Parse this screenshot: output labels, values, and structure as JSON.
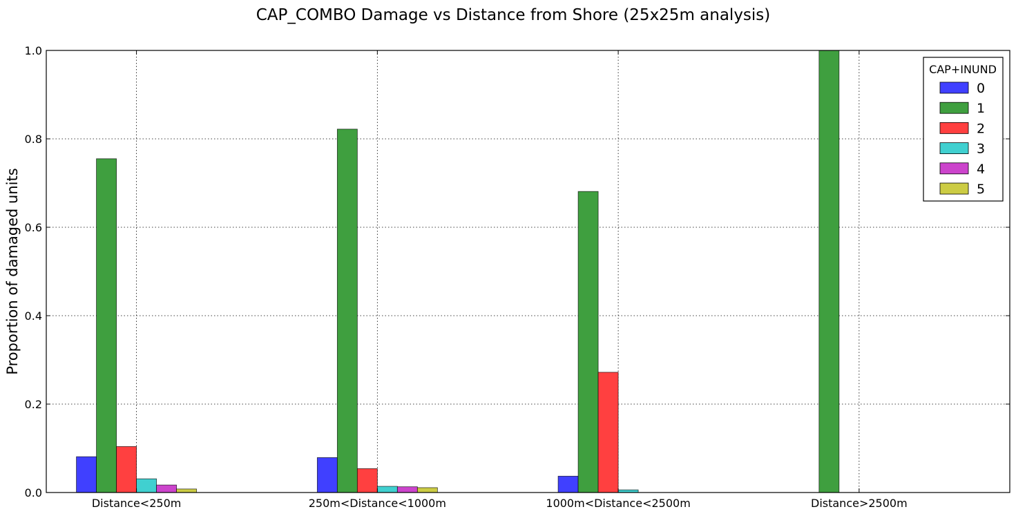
{
  "chart_data": {
    "type": "bar",
    "title": "CAP_COMBO Damage vs Distance from Shore (25x25m analysis)",
    "xlabel": "",
    "ylabel": "Proportion of damaged units",
    "ylim": [
      0,
      1.0
    ],
    "yticks": [
      "0.0",
      "0.2",
      "0.4",
      "0.6",
      "0.8",
      "1.0"
    ],
    "grid": true,
    "legend_position": "top-right",
    "legend_title": "CAP+INUND",
    "categories": [
      "Distance<250m",
      "250m<Distance<1000m",
      "1000m<Distance<2500m",
      "Distance>2500m"
    ],
    "series": [
      {
        "name": "0",
        "color": "#4040ff",
        "values": [
          0.081,
          0.079,
          0.037,
          0.0
        ]
      },
      {
        "name": "1",
        "color": "#3f9f3f",
        "values": [
          0.755,
          0.822,
          0.681,
          1.0
        ]
      },
      {
        "name": "2",
        "color": "#ff4040",
        "values": [
          0.104,
          0.054,
          0.272,
          0.0
        ]
      },
      {
        "name": "3",
        "color": "#40d0d0",
        "values": [
          0.031,
          0.014,
          0.006,
          0.0
        ]
      },
      {
        "name": "4",
        "color": "#cc44cc",
        "values": [
          0.017,
          0.013,
          0.0,
          0.0
        ]
      },
      {
        "name": "5",
        "color": "#cccc44",
        "values": [
          0.008,
          0.011,
          0.0,
          0.0
        ]
      }
    ]
  }
}
